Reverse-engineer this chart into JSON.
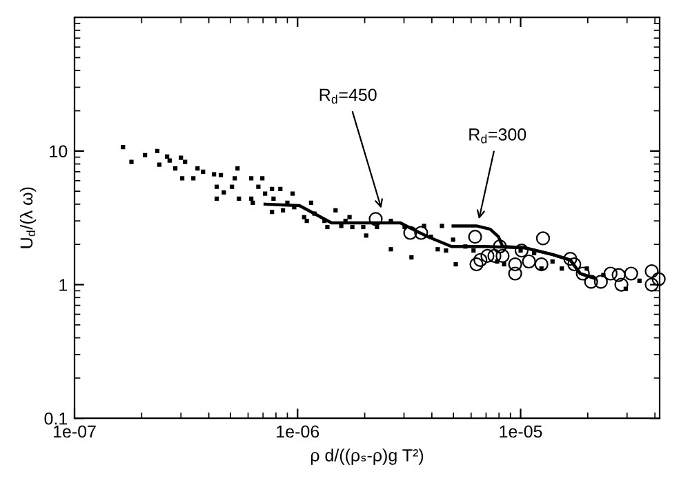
{
  "chart_data": {
    "type": "scatter",
    "xlabel": "ρ d/((ρₛ-ρ)g T²)",
    "ylabel": "U$_{d}$/(λ ω)",
    "log": "xy",
    "xlim": [
      1e-07,
      4.2e-05
    ],
    "ylim": [
      0.1,
      100
    ],
    "xticks": [
      {
        "value": 1e-07,
        "label": "1e-07"
      },
      {
        "value": 1e-06,
        "label": "1e-06"
      },
      {
        "value": 1e-05,
        "label": "1e-05"
      }
    ],
    "yticks": [
      0.1,
      1,
      10
    ],
    "grid": false,
    "legend": false,
    "annotations": [
      {
        "text": "R$_{d}$=450",
        "x": 2.4e-06,
        "y": 3.5
      },
      {
        "text": "R$_{d}$=300",
        "x": 6.45e-06,
        "y": 2.9
      }
    ],
    "series": [
      {
        "marker": "square",
        "color": "#000000",
        "x": [
          1.65e-07,
          1.8e-07,
          2.07e-07,
          2.35e-07,
          2.4e-07,
          2.6e-07,
          2.67e-07,
          2.83e-07,
          3e-07,
          3.13e-07,
          3.04e-07,
          3.56e-07,
          3.77e-07,
          3.41e-07,
          4.22e-07,
          4.53e-07,
          5.38e-07,
          5.23e-07,
          4.34e-07,
          4.67e-07,
          4.34e-07,
          5.08e-07,
          5.46e-07,
          6.2e-07,
          6.95e-07,
          6.67e-07,
          6.2e-07,
          6.3e-07,
          7.15e-07,
          7.68e-07,
          8.37e-07,
          7.8e-07,
          9.5e-07,
          9e-07,
          7.68e-07,
          8.6e-07,
          9.66e-07,
          1.07e-06,
          1.15e-06,
          1.1e-06,
          1.19e-06,
          1.32e-06,
          1.48e-06,
          1.36e-06,
          1.57e-06,
          1.71e-06,
          1.76e-06,
          1.64e-06,
          1.97e-06,
          2.03e-06,
          2.27e-06,
          2.62e-06,
          2.62e-06,
          3.02e-06,
          3.24e-06,
          3.69e-06,
          3.96e-06,
          4.44e-06,
          4.25e-06,
          4.63e-06,
          5.12e-06,
          4.98e-06,
          5.65e-06,
          6.15e-06,
          7.85e-06,
          8.43e-06,
          1e-05,
          1.15e-05,
          1.24e-05,
          1.39e-05,
          1.53e-05,
          1.98e-05,
          2.35e-05,
          2.96e-05,
          3.41e-05
        ],
        "values": [
          10.7,
          8.3,
          9.3,
          10,
          7.9,
          9.1,
          8.5,
          7.4,
          8.9,
          8.3,
          6.25,
          7.4,
          7.0,
          6.25,
          6.7,
          6.6,
          7.4,
          6.25,
          5.4,
          4.9,
          4.4,
          5.4,
          4.4,
          6.25,
          6.25,
          5.4,
          4.4,
          4.1,
          4.8,
          5.2,
          5.2,
          4.4,
          4.8,
          4.1,
          3.5,
          3.6,
          3.8,
          3.2,
          4.1,
          3.0,
          3.4,
          3.0,
          3.6,
          2.7,
          2.75,
          3.2,
          2.7,
          3.0,
          2.7,
          2.33,
          2.7,
          3.0,
          1.84,
          2.7,
          1.6,
          2.75,
          2.28,
          2.75,
          1.84,
          1.8,
          1.42,
          2.17,
          1.93,
          1.8,
          1.49,
          1.42,
          1.8,
          1.72,
          1.32,
          1.49,
          1.32,
          1.32,
          1.18,
          0.93,
          1.07
        ]
      },
      {
        "marker": "circle",
        "color": "#000000",
        "x": [
          2.24e-06,
          3.2e-06,
          3.58e-06,
          6.25e-06,
          1.26e-05,
          6.34e-06,
          6.6e-06,
          7.1e-06,
          7.63e-06,
          8.3e-06,
          8.07e-06,
          9.45e-06,
          9.45e-06,
          1.01e-05,
          1.09e-05,
          1.24e-05,
          1.67e-05,
          1.74e-05,
          1.9e-05,
          2.07e-05,
          2.29e-05,
          2.53e-05,
          2.75e-05,
          2.83e-05,
          3.13e-05,
          3.87e-05,
          3.87e-05,
          4.16e-05
        ],
        "values": [
          3.1,
          2.44,
          2.44,
          2.28,
          2.22,
          1.42,
          1.53,
          1.64,
          1.64,
          1.64,
          1.93,
          1.42,
          1.21,
          1.8,
          1.49,
          1.42,
          1.56,
          1.42,
          1.21,
          1.05,
          1.05,
          1.21,
          1.18,
          1.0,
          1.21,
          1.26,
          1.0,
          1.1
        ]
      },
      {
        "type": "line",
        "color": "#000000",
        "x": [
          7.15e-07,
          1.02e-06,
          1.42e-06,
          1.89e-06,
          2.89e-06,
          3.34e-06,
          3.85e-06,
          4.9e-06,
          6.8e-06,
          1.04e-05,
          1.39e-05,
          1.67e-05,
          1.85e-05,
          2.13e-05
        ],
        "values": [
          4.0,
          3.9,
          2.9,
          2.9,
          2.9,
          2.56,
          2.28,
          1.93,
          1.93,
          1.89,
          1.68,
          1.53,
          1.21,
          1.12
        ]
      },
      {
        "type": "line",
        "color": "#000000",
        "x": [
          4.98e-06,
          6.34e-06,
          7.3e-06,
          7.96e-06,
          8.3e-06,
          1.04e-05,
          1.39e-05,
          1.67e-05,
          1.85e-05,
          2.13e-05
        ],
        "values": [
          2.75,
          2.75,
          2.6,
          2.28,
          1.93,
          1.89,
          1.68,
          1.53,
          1.21,
          1.12
        ]
      }
    ]
  }
}
